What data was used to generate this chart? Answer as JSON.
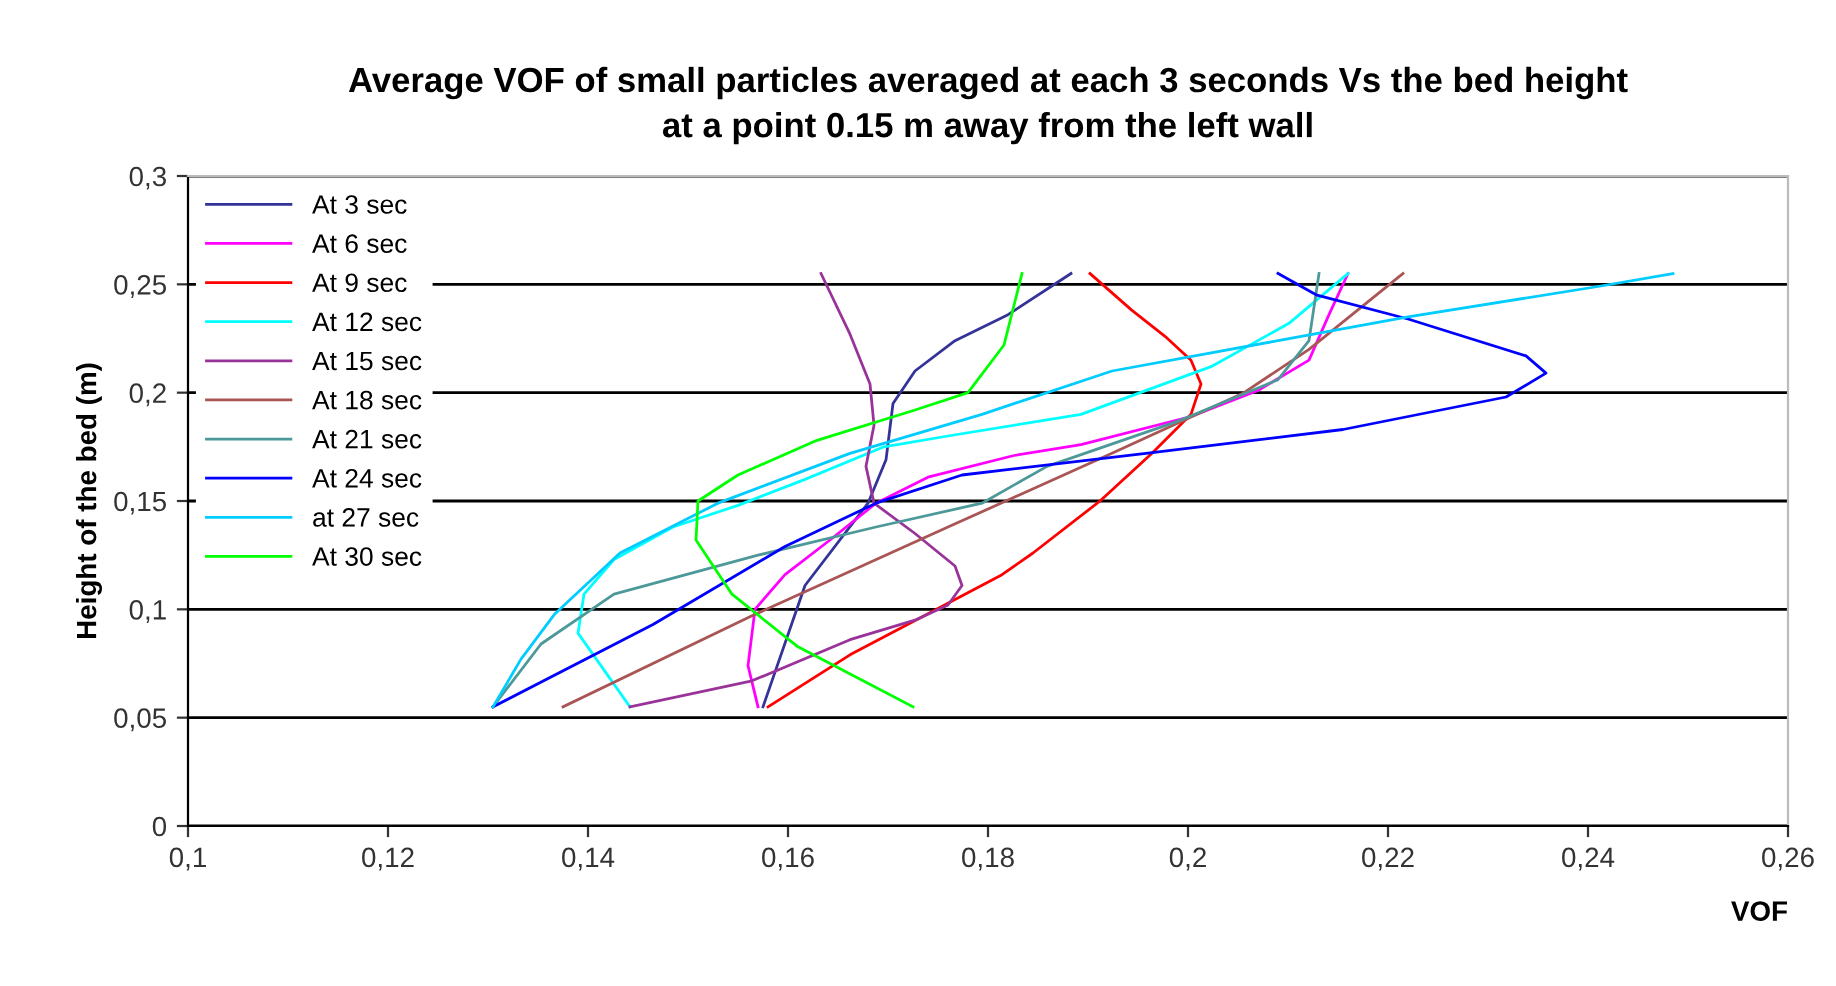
{
  "chart_data": {
    "type": "line",
    "title": "Average VOF of small particles averaged at each 3 seconds Vs the bed height\nat a point 0.15 m away from the left wall",
    "xlabel": "VOF",
    "ylabel": "Height of the bed (m)",
    "xlim": [
      0.1,
      0.26
    ],
    "xticks": [
      {
        "value": 0.1,
        "label": "0,1"
      },
      {
        "value": 0.12,
        "label": "0,12"
      },
      {
        "value": 0.14,
        "label": "0,14"
      },
      {
        "value": 0.16,
        "label": "0,16"
      },
      {
        "value": 0.18,
        "label": "0,18"
      },
      {
        "value": 0.2,
        "label": "0,2"
      },
      {
        "value": 0.22,
        "label": "0,22"
      },
      {
        "value": 0.24,
        "label": "0,24"
      },
      {
        "value": 0.26,
        "label": "0,26"
      }
    ],
    "ylim": [
      0,
      0.3
    ],
    "yticks": [
      0,
      {
        "value": 0.05,
        "label": "0,05"
      },
      {
        "value": 0.1,
        "label": "0,1"
      },
      {
        "value": 0.15,
        "label": "0,15"
      },
      {
        "value": 0.2,
        "label": "0,2"
      },
      {
        "value": 0.25,
        "label": "0,25"
      },
      {
        "value": 0.3,
        "label": "0,3"
      }
    ],
    "grid": "y",
    "legend": "top left",
    "marker": "none",
    "line_style": "solid",
    "series": [
      {
        "name": "At 3 sec",
        "color": "#333399",
        "x": [
          0.1575,
          0.1617,
          0.168,
          0.1698,
          0.1705,
          0.1727,
          0.1767,
          0.182,
          0.1883
        ],
        "values": [
          0.055,
          0.111,
          0.149,
          0.169,
          0.195,
          0.21,
          0.224,
          0.236,
          0.255
        ]
      },
      {
        "name": "At 6 sec",
        "color": "#ff00ff",
        "x": [
          0.157,
          0.156,
          0.1567,
          0.1597,
          0.1642,
          0.1688,
          0.174,
          0.1826,
          0.1893,
          0.2003,
          0.207,
          0.2121,
          0.2141,
          0.216
        ],
        "values": [
          0.055,
          0.074,
          0.1,
          0.116,
          0.132,
          0.149,
          0.161,
          0.171,
          0.176,
          0.189,
          0.201,
          0.215,
          0.236,
          0.255
        ]
      },
      {
        "name": "At 9 sec",
        "color": "#ff0000",
        "x": [
          0.158,
          0.1662,
          0.174,
          0.1814,
          0.1845,
          0.1912,
          0.1964,
          0.2003,
          0.2013,
          0.2003,
          0.1977,
          0.1944,
          0.1902
        ],
        "values": [
          0.055,
          0.079,
          0.098,
          0.116,
          0.126,
          0.15,
          0.172,
          0.19,
          0.204,
          0.215,
          0.226,
          0.238,
          0.255
        ]
      },
      {
        "name": "At 12 sec",
        "color": "#00ffff",
        "x": [
          0.1442,
          0.139,
          0.1396,
          0.1426,
          0.1485,
          0.155,
          0.1617,
          0.1696,
          0.176,
          0.1893,
          0.2023,
          0.2101,
          0.216
        ],
        "values": [
          0.055,
          0.089,
          0.107,
          0.123,
          0.138,
          0.148,
          0.16,
          0.175,
          0.18,
          0.19,
          0.212,
          0.232,
          0.255
        ]
      },
      {
        "name": "At 15 sec",
        "color": "#993399",
        "x": [
          0.1442,
          0.1564,
          0.1662,
          0.1727,
          0.176,
          0.1774,
          0.1767,
          0.1727,
          0.1686,
          0.1678,
          0.1686,
          0.1682,
          0.1662,
          0.1633
        ],
        "values": [
          0.055,
          0.067,
          0.086,
          0.095,
          0.102,
          0.111,
          0.12,
          0.135,
          0.149,
          0.166,
          0.185,
          0.204,
          0.227,
          0.255
        ]
      },
      {
        "name": "At 18 sec",
        "color": "#aa5555",
        "x": [
          0.1375,
          0.1564,
          0.176,
          0.1924,
          0.2056,
          0.2121,
          0.2215
        ],
        "values": [
          0.055,
          0.097,
          0.138,
          0.172,
          0.2,
          0.22,
          0.255
        ]
      },
      {
        "name": "At 21 sec",
        "color": "#4d9999",
        "x": [
          0.1305,
          0.1353,
          0.1426,
          0.157,
          0.1688,
          0.1794,
          0.1859,
          0.1991,
          0.209,
          0.2121,
          0.2131
        ],
        "values": [
          0.055,
          0.084,
          0.107,
          0.125,
          0.138,
          0.149,
          0.166,
          0.187,
          0.206,
          0.224,
          0.255
        ]
      },
      {
        "name": "At 24 sec",
        "color": "#0000ff",
        "x": [
          0.1305,
          0.1465,
          0.1597,
          0.1688,
          0.1774,
          0.1958,
          0.2155,
          0.2318,
          0.2358,
          0.2338,
          0.222,
          0.2129,
          0.209
        ],
        "values": [
          0.055,
          0.093,
          0.129,
          0.149,
          0.162,
          0.172,
          0.183,
          0.198,
          0.209,
          0.217,
          0.234,
          0.245,
          0.255
        ]
      },
      {
        "name": "at 27 sec",
        "color": "#00ccff",
        "x": [
          0.1305,
          0.1333,
          0.1367,
          0.1432,
          0.153,
          0.1662,
          0.1794,
          0.1924,
          0.209,
          0.222,
          0.241,
          0.2485
        ],
        "values": [
          0.055,
          0.077,
          0.098,
          0.126,
          0.149,
          0.172,
          0.19,
          0.21,
          0.224,
          0.235,
          0.249,
          0.255
        ]
      },
      {
        "name": "At 30 sec",
        "color": "#00ff00",
        "x": [
          0.1725,
          0.1609,
          0.1544,
          0.1508,
          0.151,
          0.155,
          0.1629,
          0.1727,
          0.178,
          0.1816,
          0.1834
        ],
        "values": [
          0.055,
          0.083,
          0.107,
          0.132,
          0.15,
          0.162,
          0.178,
          0.192,
          0.2,
          0.222,
          0.255
        ]
      }
    ]
  }
}
